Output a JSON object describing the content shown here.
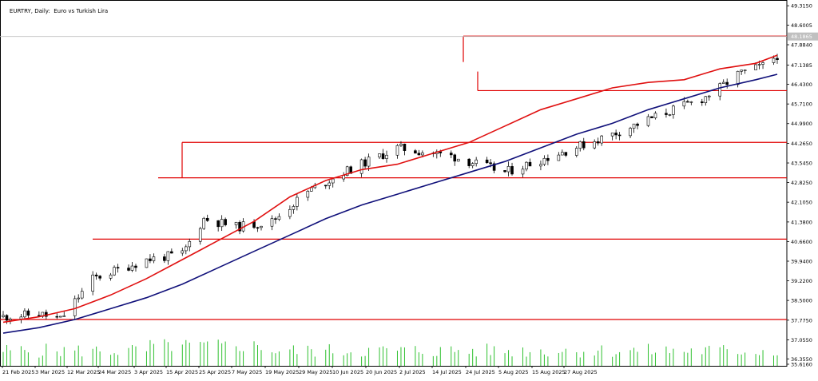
{
  "window": {
    "symbol": "EURTRY",
    "timeframe": "Daily",
    "description": "Euro vs Turkish Lira"
  },
  "colors": {
    "background": "#ffffff",
    "axis": "#000000",
    "level_lines": "#e00000",
    "ma_fast": "#e01010",
    "ma_slow": "#10107a",
    "volume": "#2ec02e",
    "candle_up_body": "#ffffff",
    "candle_down_body": "#000000",
    "current_price_line": "#c0c0c0",
    "current_price_tag": "#c0c0c0"
  },
  "chart_data": {
    "type": "candlestick",
    "title": "EURTRY, Daily:  Euro vs Turkish Lira",
    "price_axis": {
      "ticks": [
        "49.3150",
        "48.6005",
        "47.8840",
        "47.1385",
        "46.4300",
        "45.7100",
        "44.9900",
        "44.2650",
        "43.5450",
        "42.8250",
        "42.1050",
        "41.3800",
        "40.6600",
        "39.9400",
        "39.2200",
        "38.5000",
        "37.7750",
        "37.0550",
        "36.3550",
        "35.6160"
      ],
      "range": [
        36.1,
        49.35
      ],
      "current_price": "48.1865"
    },
    "time_axis": {
      "labels": [
        "21 Feb 2025",
        "3 Mar 2025",
        "12 Mar 2025",
        "24 Mar 2025",
        "3 Apr 2025",
        "15 Apr 2025",
        "25 Apr 2025",
        "7 May 2025",
        "19 May 2025",
        "29 May 2025",
        "10 Jun 2025",
        "20 Jun 2025",
        "2 Jul 2025",
        "14 Jul 2025",
        "24 Jul 2025",
        "5 Aug 2025",
        "15 Aug 2025",
        "27 Aug 2025"
      ]
    },
    "horizontal_levels": [
      48.2,
      46.2,
      44.3,
      43.0,
      40.75,
      37.8
    ],
    "moving_averages": [
      {
        "period": "fast",
        "points": [
          [
            0,
            37.7
          ],
          [
            10,
            37.9
          ],
          [
            20,
            38.2
          ],
          [
            30,
            38.7
          ],
          [
            40,
            39.3
          ],
          [
            50,
            40.0
          ],
          [
            60,
            40.7
          ],
          [
            70,
            41.4
          ],
          [
            80,
            42.3
          ],
          [
            90,
            42.9
          ],
          [
            100,
            43.3
          ],
          [
            110,
            43.5
          ],
          [
            120,
            43.9
          ],
          [
            130,
            44.3
          ],
          [
            140,
            44.9
          ],
          [
            150,
            45.5
          ],
          [
            160,
            45.9
          ],
          [
            170,
            46.3
          ],
          [
            180,
            46.5
          ],
          [
            190,
            46.6
          ],
          [
            200,
            47.0
          ],
          [
            210,
            47.2
          ],
          [
            216,
            47.5
          ]
        ]
      },
      {
        "period": "slow",
        "points": [
          [
            0,
            37.3
          ],
          [
            10,
            37.5
          ],
          [
            20,
            37.8
          ],
          [
            30,
            38.2
          ],
          [
            40,
            38.6
          ],
          [
            50,
            39.1
          ],
          [
            60,
            39.7
          ],
          [
            70,
            40.3
          ],
          [
            80,
            40.9
          ],
          [
            90,
            41.5
          ],
          [
            100,
            42.0
          ],
          [
            110,
            42.4
          ],
          [
            120,
            42.8
          ],
          [
            130,
            43.2
          ],
          [
            140,
            43.6
          ],
          [
            150,
            44.1
          ],
          [
            160,
            44.6
          ],
          [
            170,
            45.0
          ],
          [
            180,
            45.5
          ],
          [
            190,
            45.9
          ],
          [
            200,
            46.3
          ],
          [
            210,
            46.6
          ],
          [
            216,
            46.8
          ]
        ]
      }
    ]
  }
}
